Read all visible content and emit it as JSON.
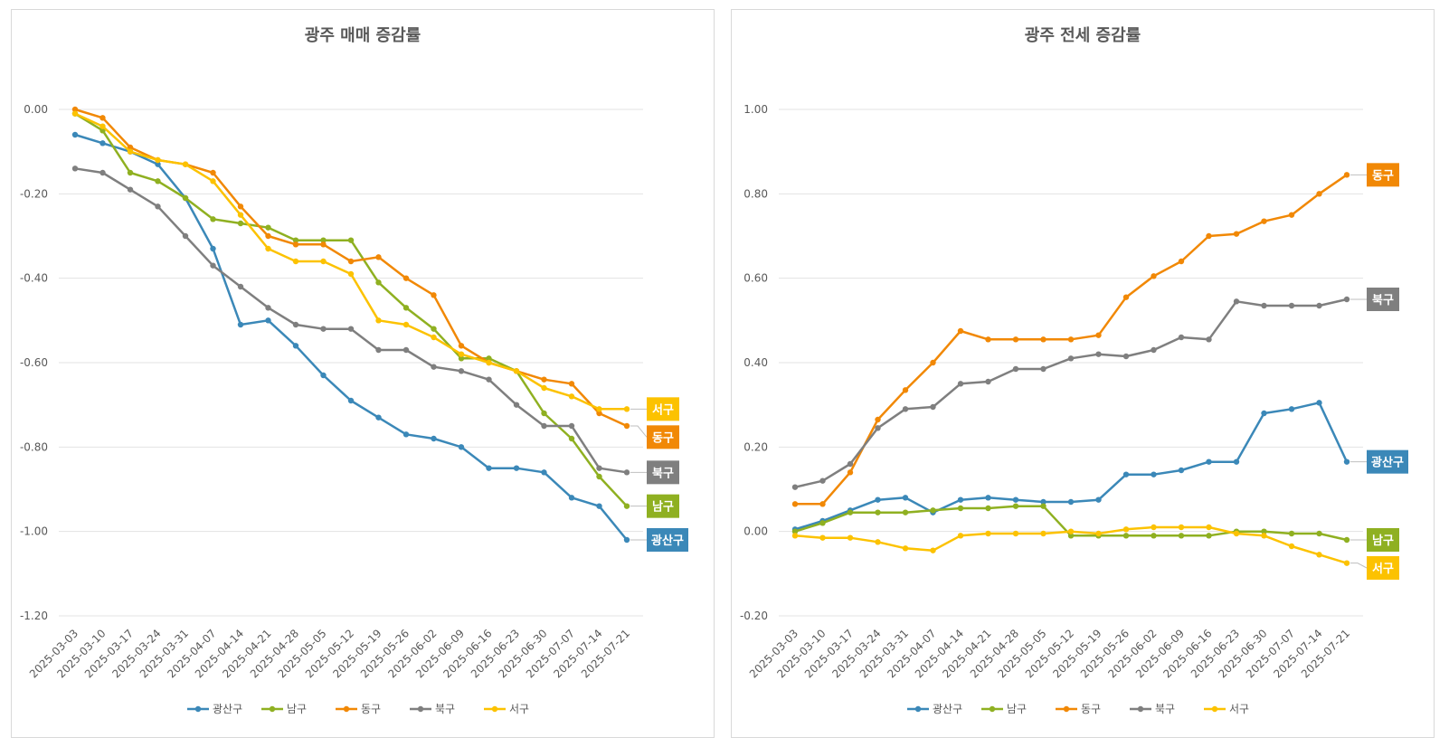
{
  "colors": {
    "광산구": "#3B88B8",
    "남구": "#8FB021",
    "동구": "#F18805",
    "북구": "#7F7F7F",
    "서구": "#FCC200"
  },
  "chart_data": [
    {
      "type": "line",
      "title": "광주 매매 증감률",
      "ylim": [
        -1.2,
        0.0
      ],
      "yticks": [
        "0.00",
        "-0.20",
        "-0.40",
        "-0.60",
        "-0.80",
        "-1.00",
        "-1.20"
      ],
      "grid": true,
      "legend": "bottom",
      "categories": [
        "2025-03-03",
        "2025-03-10",
        "2025-03-17",
        "2025-03-24",
        "2025-03-31",
        "2025-04-07",
        "2025-04-14",
        "2025-04-21",
        "2025-04-28",
        "2025-05-05",
        "2025-05-12",
        "2025-05-19",
        "2025-05-26",
        "2025-06-02",
        "2025-06-09",
        "2025-06-16",
        "2025-06-23",
        "2025-06-30",
        "2025-07-07",
        "2025-07-14",
        "2025-07-21"
      ],
      "series": [
        {
          "name": "광산구",
          "values": [
            -0.06,
            -0.08,
            -0.1,
            -0.13,
            -0.21,
            -0.33,
            -0.51,
            -0.5,
            -0.56,
            -0.63,
            -0.69,
            -0.73,
            -0.77,
            -0.78,
            -0.8,
            -0.85,
            -0.85,
            -0.86,
            -0.92,
            -0.94,
            -1.02
          ]
        },
        {
          "name": "남구",
          "values": [
            -0.01,
            -0.05,
            -0.15,
            -0.17,
            -0.21,
            -0.26,
            -0.27,
            -0.28,
            -0.31,
            -0.31,
            -0.31,
            -0.41,
            -0.47,
            -0.52,
            -0.59,
            -0.59,
            -0.62,
            -0.72,
            -0.78,
            -0.87,
            -0.94
          ]
        },
        {
          "name": "동구",
          "values": [
            0.0,
            -0.02,
            -0.09,
            -0.12,
            -0.13,
            -0.15,
            -0.23,
            -0.3,
            -0.32,
            -0.32,
            -0.36,
            -0.35,
            -0.4,
            -0.44,
            -0.56,
            -0.6,
            -0.62,
            -0.64,
            -0.65,
            -0.72,
            -0.75
          ]
        },
        {
          "name": "북구",
          "values": [
            -0.14,
            -0.15,
            -0.19,
            -0.23,
            -0.3,
            -0.37,
            -0.42,
            -0.47,
            -0.51,
            -0.52,
            -0.52,
            -0.57,
            -0.57,
            -0.61,
            -0.62,
            -0.64,
            -0.7,
            -0.75,
            -0.75,
            -0.85,
            -0.86
          ]
        },
        {
          "name": "서구",
          "values": [
            -0.01,
            -0.04,
            -0.1,
            -0.12,
            -0.13,
            -0.17,
            -0.25,
            -0.33,
            -0.36,
            -0.36,
            -0.39,
            -0.5,
            -0.51,
            -0.54,
            -0.58,
            -0.6,
            -0.62,
            -0.66,
            -0.68,
            -0.71,
            -0.71
          ]
        }
      ],
      "end_labels": [
        {
          "series": "서구",
          "text": "서구"
        },
        {
          "series": "동구",
          "text": "동구"
        },
        {
          "series": "북구",
          "text": "북구"
        },
        {
          "series": "남구",
          "text": "남구"
        },
        {
          "series": "광산구",
          "text": "광산구"
        }
      ]
    },
    {
      "type": "line",
      "title": "광주 전세 증감률",
      "ylim": [
        -0.2,
        1.0
      ],
      "yticks": [
        "1.00",
        "0.80",
        "0.60",
        "0.40",
        "0.20",
        "0.00",
        "-0.20"
      ],
      "grid": true,
      "legend": "bottom",
      "categories": [
        "2025-03-03",
        "2025-03-10",
        "2025-03-17",
        "2025-03-24",
        "2025-03-31",
        "2025-04-07",
        "2025-04-14",
        "2025-04-21",
        "2025-04-28",
        "2025-05-05",
        "2025-05-12",
        "2025-05-19",
        "2025-05-26",
        "2025-06-02",
        "2025-06-09",
        "2025-06-16",
        "2025-06-23",
        "2025-06-30",
        "2025-07-07",
        "2025-07-14",
        "2025-07-21"
      ],
      "series": [
        {
          "name": "광산구",
          "values": [
            0.005,
            0.025,
            0.05,
            0.075,
            0.08,
            0.045,
            0.075,
            0.08,
            0.075,
            0.07,
            0.07,
            0.075,
            0.135,
            0.135,
            0.145,
            0.165,
            0.165,
            0.28,
            0.29,
            0.305,
            0.165
          ]
        },
        {
          "name": "남구",
          "values": [
            0.0,
            0.02,
            0.045,
            0.045,
            0.045,
            0.05,
            0.055,
            0.055,
            0.06,
            0.06,
            -0.01,
            -0.01,
            -0.01,
            -0.01,
            -0.01,
            -0.01,
            0.0,
            0.0,
            -0.005,
            -0.005,
            -0.02
          ]
        },
        {
          "name": "동구",
          "values": [
            0.065,
            0.065,
            0.14,
            0.265,
            0.335,
            0.4,
            0.475,
            0.455,
            0.455,
            0.455,
            0.455,
            0.465,
            0.555,
            0.605,
            0.64,
            0.7,
            0.705,
            0.735,
            0.75,
            0.8,
            0.845
          ]
        },
        {
          "name": "북구",
          "values": [
            0.105,
            0.12,
            0.16,
            0.245,
            0.29,
            0.295,
            0.35,
            0.355,
            0.385,
            0.385,
            0.41,
            0.42,
            0.415,
            0.43,
            0.46,
            0.455,
            0.545,
            0.535,
            0.535,
            0.535,
            0.55
          ]
        },
        {
          "name": "서구",
          "values": [
            -0.01,
            -0.015,
            -0.015,
            -0.025,
            -0.04,
            -0.045,
            -0.01,
            -0.005,
            -0.005,
            -0.005,
            0.0,
            -0.005,
            0.005,
            0.01,
            0.01,
            0.01,
            -0.005,
            -0.01,
            -0.035,
            -0.055,
            -0.075
          ]
        }
      ],
      "end_labels": [
        {
          "series": "동구",
          "text": "동구"
        },
        {
          "series": "북구",
          "text": "북구"
        },
        {
          "series": "광산구",
          "text": "광산구"
        },
        {
          "series": "남구",
          "text": "남구"
        },
        {
          "series": "서구",
          "text": "서구"
        }
      ]
    }
  ]
}
